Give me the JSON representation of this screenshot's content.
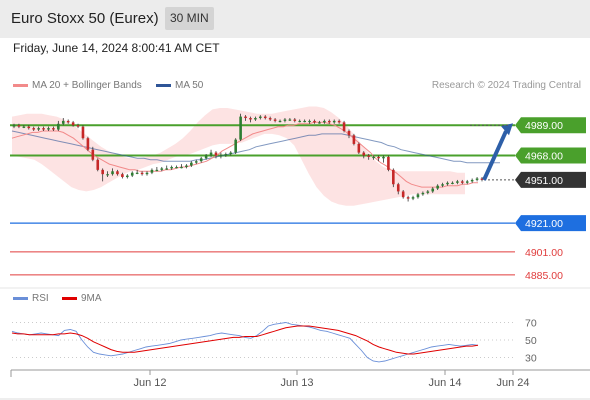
{
  "header": {
    "title": "Euro Stoxx 50 (Eurex)",
    "timeframe": "30 MIN"
  },
  "timestamp": "Friday, June 14, 2024 8:00:41 AM CET",
  "legend": {
    "ma20": {
      "label": "MA 20 + Bollinger Bands",
      "color": "#f28a8a"
    },
    "ma50": {
      "label": "MA 50",
      "color": "#2f5597"
    }
  },
  "credit": "Research © 2024 Trading Central",
  "rsi_legend": {
    "rsi": {
      "label": "RSI",
      "color": "#6a8fd8"
    },
    "ma9": {
      "label": "9MA",
      "color": "#e00000"
    }
  },
  "chart_data": [
    {
      "type": "candlestick",
      "title": "Euro Stoxx 50 (Eurex)",
      "ylim": [
        4878,
        5010
      ],
      "x_ticks": [
        "Jun 12",
        "Jun 13",
        "Jun 14",
        "Jun 24"
      ],
      "close": [
        4989,
        4988,
        4988,
        4987,
        4986,
        4987,
        4986,
        4987,
        4986,
        4990,
        4992,
        4991,
        4989,
        4988,
        4980,
        4972,
        4965,
        4958,
        4955,
        4955,
        4957,
        4955,
        4953,
        4954,
        4956,
        4956,
        4955,
        4956,
        4958,
        4958,
        4959,
        4959,
        4960,
        4960,
        4960,
        4961,
        4963,
        4964,
        4966,
        4968,
        4970,
        4968,
        4968,
        4969,
        4970,
        4979,
        4995,
        4994,
        4993,
        4994,
        4995,
        4994,
        4993,
        4992,
        4992,
        4993,
        4993,
        4992,
        4992,
        4992,
        4992,
        4991,
        4991,
        4992,
        4991,
        4992,
        4991,
        4985,
        4982,
        4976,
        4970,
        4968,
        4967,
        4967,
        4966,
        4967,
        4958,
        4948,
        4943,
        4939,
        4938,
        4939,
        4941,
        4942,
        4943,
        4945,
        4947,
        4948,
        4949,
        4949,
        4950,
        4949,
        4950,
        4951,
        4952,
        4951
      ],
      "open": [
        4988,
        4989,
        4988,
        4988,
        4987,
        4986,
        4987,
        4986,
        4987,
        4986,
        4990,
        4992,
        4991,
        4989,
        4988,
        4980,
        4972,
        4965,
        4958,
        4955,
        4955,
        4957,
        4955,
        4953,
        4954,
        4956,
        4956,
        4955,
        4956,
        4958,
        4958,
        4959,
        4959,
        4960,
        4960,
        4960,
        4961,
        4963,
        4964,
        4966,
        4968,
        4970,
        4968,
        4968,
        4969,
        4970,
        4979,
        4995,
        4994,
        4993,
        4994,
        4995,
        4994,
        4993,
        4992,
        4992,
        4993,
        4993,
        4992,
        4992,
        4992,
        4992,
        4991,
        4991,
        4992,
        4991,
        4992,
        4991,
        4985,
        4982,
        4976,
        4970,
        4968,
        4967,
        4967,
        4966,
        4967,
        4958,
        4948,
        4943,
        4939,
        4938,
        4939,
        4941,
        4942,
        4943,
        4945,
        4947,
        4948,
        4949,
        4949,
        4950,
        4949,
        4950,
        4951,
        4952
      ],
      "high": [
        4990,
        4990,
        4989,
        4989,
        4988,
        4988,
        4988,
        4988,
        4988,
        4992,
        4994,
        4993,
        4992,
        4990,
        4989,
        4981,
        4974,
        4966,
        4959,
        4957,
        4959,
        4958,
        4956,
        4955,
        4957,
        4958,
        4957,
        4957,
        4959,
        4960,
        4960,
        4961,
        4961,
        4961,
        4962,
        4962,
        4964,
        4965,
        4967,
        4969,
        4972,
        4971,
        4970,
        4970,
        4971,
        4980,
        4997,
        4996,
        4995,
        4995,
        4996,
        4996,
        4995,
        4994,
        4993,
        4994,
        4994,
        4994,
        4993,
        4993,
        4993,
        4993,
        4992,
        4993,
        4993,
        4993,
        4993,
        4992,
        4986,
        4983,
        4977,
        4971,
        4969,
        4968,
        4968,
        4968,
        4968,
        4959,
        4949,
        4944,
        4940,
        4940,
        4942,
        4943,
        4944,
        4946,
        4948,
        4949,
        4950,
        4950,
        4951,
        4951,
        4951,
        4952,
        4953,
        4953
      ],
      "low": [
        4987,
        4987,
        4987,
        4986,
        4985,
        4985,
        4985,
        4985,
        4985,
        4985,
        4989,
        4990,
        4988,
        4987,
        4979,
        4971,
        4964,
        4957,
        4950,
        4953,
        4954,
        4954,
        4952,
        4952,
        4953,
        4955,
        4954,
        4954,
        4955,
        4957,
        4957,
        4958,
        4958,
        4959,
        4959,
        4959,
        4960,
        4962,
        4963,
        4965,
        4967,
        4966,
        4966,
        4967,
        4968,
        4969,
        4978,
        4992,
        4991,
        4992,
        4993,
        4993,
        4992,
        4991,
        4991,
        4991,
        4992,
        4991,
        4991,
        4991,
        4990,
        4990,
        4990,
        4990,
        4990,
        4990,
        4990,
        4984,
        4980,
        4975,
        4969,
        4966,
        4965,
        4965,
        4964,
        4963,
        4957,
        4946,
        4941,
        4938,
        4936,
        4937,
        4938,
        4940,
        4941,
        4942,
        4944,
        4946,
        4947,
        4948,
        4948,
        4948,
        4948,
        4949,
        4950,
        4950
      ],
      "ma20": [
        4980,
        4981,
        4982,
        4983,
        4984,
        4984,
        4985,
        4985,
        4985,
        4985,
        4984,
        4982,
        4980,
        4977,
        4974,
        4971,
        4968,
        4966,
        4964,
        4962,
        4961,
        4960,
        4959,
        4958,
        4958,
        4957,
        4957,
        4957,
        4957,
        4957,
        4958,
        4958,
        4959,
        4960,
        4960,
        4961,
        4962,
        4963,
        4964,
        4966,
        4968,
        4971,
        4973,
        4975,
        4977,
        4979,
        4981,
        4983,
        4984,
        4985,
        4986,
        4987,
        4988,
        4988,
        4989,
        4989,
        4990,
        4990,
        4990,
        4991,
        4991,
        4991,
        4990,
        4989,
        4987,
        4985,
        4982,
        4979,
        4976,
        4973,
        4970,
        4966,
        4963,
        4961,
        4958,
        4956,
        4953,
        4950,
        4948,
        4947,
        4946,
        4946,
        4946,
        4946,
        4946,
        4947,
        4947,
        4947,
        4948,
        4948,
        4949,
        4949
      ],
      "ma50": [
        4985,
        4984,
        4983,
        4982,
        4981,
        4980,
        4979,
        4978,
        4977,
        4976,
        4975,
        4974,
        4973,
        4972,
        4971,
        4970,
        4969,
        4968,
        4967,
        4966,
        4966,
        4965,
        4965,
        4964,
        4964,
        4964,
        4964,
        4964,
        4965,
        4965,
        4966,
        4967,
        4968,
        4969,
        4970,
        4971,
        4972,
        4974,
        4975,
        4976,
        4977,
        4978,
        4979,
        4980,
        4981,
        4982,
        4982,
        4983,
        4983,
        4983,
        4983,
        4982,
        4981,
        4980,
        4979,
        4978,
        4977,
        4975,
        4974,
        4972,
        4971,
        4970,
        4969,
        4968,
        4967,
        4966,
        4965,
        4964,
        4964,
        4963,
        4963,
        4963,
        4963,
        4963,
        4963
      ],
      "bb_upper": [
        4995,
        4996,
        4997,
        4997,
        4997,
        4996,
        4995,
        4993,
        4990,
        4986,
        4982,
        4978,
        4974,
        4971,
        4969,
        4967,
        4966,
        4966,
        4967,
        4968,
        4970,
        4973,
        4976,
        4980,
        4985,
        4991,
        4996,
        5000,
        5001,
        5001,
        5000,
        4999,
        4998,
        4997,
        4997,
        4997,
        4998,
        4999,
        5000,
        5001,
        5002,
        5002,
        5001,
        4998,
        4994,
        4989,
        4983,
        4976,
        4970,
        4964,
        4960,
        4958,
        4957,
        4957,
        4957,
        4957,
        4957,
        4957,
        4957,
        4957,
        4956,
        4956
      ],
      "bb_lower": [
        4968,
        4967,
        4966,
        4965,
        4962,
        4958,
        4954,
        4950,
        4946,
        4944,
        4943,
        4944,
        4946,
        4949,
        4952,
        4955,
        4957,
        4958,
        4960,
        4962,
        4963,
        4965,
        4967,
        4968,
        4969,
        4971,
        4973,
        4975,
        4976,
        4976,
        4976,
        4977,
        4979,
        4981,
        4983,
        4983,
        4982,
        4980,
        4975,
        4965,
        4955,
        4946,
        4940,
        4936,
        4934,
        4933,
        4933,
        4934,
        4935,
        4936,
        4937,
        4938,
        4939,
        4940,
        4941,
        4941,
        4941,
        4941,
        4941,
        4941,
        4941,
        4941
      ],
      "levels": [
        {
          "value": 4989.0,
          "label": "4989.00",
          "kind": "resistance",
          "color": "#4aa02c"
        },
        {
          "value": 4968.0,
          "label": "4968.00",
          "kind": "resistance",
          "color": "#4aa02c"
        },
        {
          "value": 4951.0,
          "label": "4951.00",
          "kind": "last",
          "color": "#333333"
        },
        {
          "value": 4921.0,
          "label": "4921.00",
          "kind": "pivot",
          "color": "#1e6fe0"
        },
        {
          "value": 4901.0,
          "label": "4901.00",
          "kind": "support",
          "color": "#e03c3c"
        },
        {
          "value": 4885.0,
          "label": "4885.00",
          "kind": "support",
          "color": "#e03c3c"
        }
      ],
      "forecast": {
        "from": 4951.0,
        "to": 4989.0,
        "direction": "up"
      }
    },
    {
      "type": "line",
      "title": "RSI",
      "ylim": [
        18,
        82
      ],
      "y_ticks": [
        70,
        50,
        30
      ],
      "series": [
        {
          "name": "RSI",
          "values": [
            60,
            58,
            57,
            56,
            57,
            58,
            57,
            56,
            55,
            61,
            62,
            60,
            50,
            42,
            36,
            34,
            33,
            32,
            33,
            34,
            36,
            38,
            40,
            42,
            43,
            44,
            45,
            46,
            48,
            50,
            51,
            52,
            53,
            54,
            55,
            57,
            58,
            57,
            56,
            55,
            53,
            52,
            55,
            60,
            66,
            68,
            69,
            70,
            68,
            67,
            66,
            65,
            63,
            61,
            60,
            58,
            56,
            54,
            52,
            45,
            38,
            30,
            26,
            25,
            26,
            28,
            30,
            32,
            34,
            36,
            38,
            40,
            42,
            43,
            44,
            45,
            44,
            43,
            44,
            45,
            44
          ]
        },
        {
          "name": "9MA",
          "values": [
            58,
            57,
            57,
            56,
            56,
            56,
            56,
            56,
            57,
            57,
            58,
            57,
            55,
            52,
            48,
            45,
            42,
            39,
            37,
            36,
            36,
            36,
            37,
            38,
            39,
            40,
            41,
            42,
            43,
            44,
            45,
            46,
            47,
            48,
            49,
            50,
            51,
            52,
            53,
            53,
            54,
            54,
            54,
            56,
            58,
            60,
            62,
            64,
            65,
            66,
            66,
            66,
            65,
            64,
            63,
            62,
            61,
            59,
            57,
            55,
            52,
            49,
            45,
            42,
            40,
            38,
            36,
            35,
            34,
            34,
            35,
            36,
            37,
            38,
            39,
            40,
            41,
            42,
            43,
            43,
            44
          ]
        }
      ]
    }
  ]
}
